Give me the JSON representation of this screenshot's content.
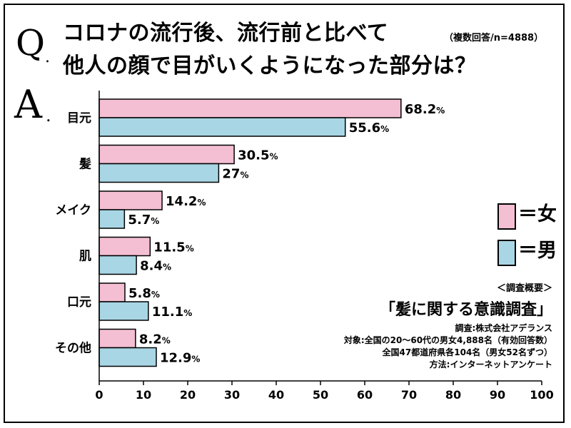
{
  "question": {
    "prefix": "Q",
    "prefix_dot": ".",
    "title_line1": "コロナの流行後、流行前と比べて",
    "title_line2": "他人の顔で目がいくようになった部分は？",
    "sample_note": "（複数回答/n=4888）"
  },
  "answer": {
    "prefix": "A",
    "prefix_dot": "."
  },
  "legend": {
    "female_label": "＝女",
    "male_label": "＝男"
  },
  "survey": {
    "header": "＜調査概要＞",
    "title": "「髪に関する意識調査」",
    "lines": [
      "調査:株式会社アデランス",
      "対象:全国の20〜60代の男女4,888名（有効回答数）",
      "全国47都道府県各104名（男女52名ずつ）",
      "方法:インターネットアンケート"
    ]
  },
  "colors": {
    "female": "#f4bed3",
    "male": "#a9d6e5",
    "bar_border": "#000000"
  },
  "chart_data": {
    "type": "bar",
    "orientation": "horizontal",
    "categories": [
      "目元",
      "髪",
      "メイク",
      "肌",
      "口元",
      "その他"
    ],
    "series": [
      {
        "name": "女",
        "values": [
          68.2,
          30.5,
          14.2,
          11.5,
          5.8,
          8.2
        ],
        "labels": [
          "68.2",
          "30.5",
          "14.2",
          "11.5",
          "5.8",
          "8.2"
        ]
      },
      {
        "name": "男",
        "values": [
          55.6,
          27,
          5.7,
          8.4,
          11.1,
          12.9
        ],
        "labels": [
          "55.6",
          "27",
          "5.7",
          "8.4",
          "11.1",
          "12.9"
        ]
      }
    ],
    "value_suffix": "%",
    "xlim": [
      0,
      100
    ],
    "xticks": [
      0,
      10,
      20,
      30,
      40,
      50,
      60,
      70,
      80,
      90,
      100
    ],
    "grid": false,
    "legend_position": "right"
  }
}
